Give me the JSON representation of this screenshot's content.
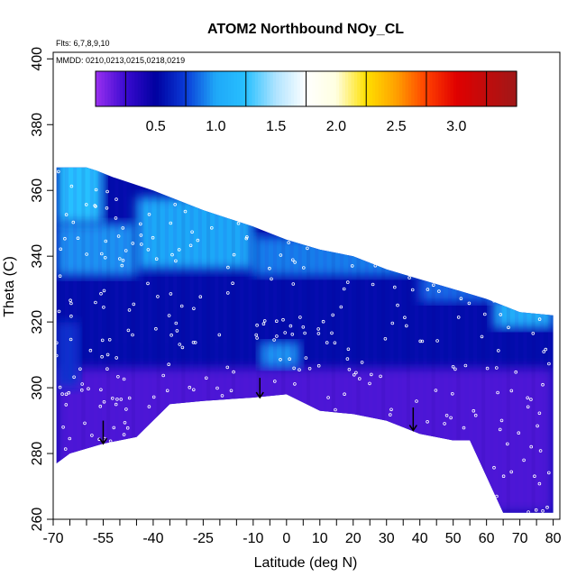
{
  "chart_data": {
    "type": "heatmap",
    "title": "ATOM2 Northbound NOy_CL",
    "annotations": {
      "flights": "Flts: 6,7,8,9,10",
      "dates": "MMDD: 0210,0213,0215,0218,0219"
    },
    "xlabel": "Latitude (deg N)",
    "ylabel": "Theta (C)",
    "xlim": [
      -70,
      82
    ],
    "ylim": [
      260,
      402
    ],
    "x_tick_labels": [
      {
        "value": -70,
        "label": "-70"
      },
      {
        "value": -55,
        "label": "-55"
      },
      {
        "value": -40,
        "label": "-40"
      },
      {
        "value": -25,
        "label": "-25"
      },
      {
        "value": -10,
        "label": "-10"
      },
      {
        "value": 0,
        "label": "0"
      },
      {
        "value": 10,
        "label": "10"
      },
      {
        "value": 20,
        "label": "20"
      },
      {
        "value": 30,
        "label": "30"
      },
      {
        "value": 40,
        "label": "40"
      },
      {
        "value": 50,
        "label": "50"
      },
      {
        "value": 60,
        "label": "60"
      },
      {
        "value": 70,
        "label": "70"
      },
      {
        "value": 80,
        "label": "80"
      }
    ],
    "x_minor_ticks": [
      -65,
      -60,
      -50,
      -45,
      -35,
      -30,
      -20,
      -15,
      -5,
      5,
      15,
      25,
      35,
      45,
      55,
      65,
      75
    ],
    "y_tick_labels": [
      {
        "value": 260,
        "label": "260"
      },
      {
        "value": 280,
        "label": "280"
      },
      {
        "value": 300,
        "label": "300"
      },
      {
        "value": 320,
        "label": "320"
      },
      {
        "value": 340,
        "label": "340"
      },
      {
        "value": 360,
        "label": "360"
      },
      {
        "value": 380,
        "label": "380"
      },
      {
        "value": 400,
        "label": "400"
      }
    ],
    "colorbar": {
      "range": [
        0,
        3.5
      ],
      "tick_labels": [
        {
          "value": 0.5,
          "label": "0.5"
        },
        {
          "value": 1.0,
          "label": "1.0"
        },
        {
          "value": 1.5,
          "label": "1.5"
        },
        {
          "value": 2.0,
          "label": "2.0"
        },
        {
          "value": 2.5,
          "label": "2.5"
        },
        {
          "value": 3.0,
          "label": "3.0"
        }
      ],
      "stops": [
        {
          "v": 0.0,
          "c": "#9a30f0"
        },
        {
          "v": 0.25,
          "c": "#3a0ad0"
        },
        {
          "v": 0.5,
          "c": "#0000a0"
        },
        {
          "v": 0.75,
          "c": "#0a3cd8"
        },
        {
          "v": 1.0,
          "c": "#1fa8f8"
        },
        {
          "v": 1.25,
          "c": "#28c0ff"
        },
        {
          "v": 1.5,
          "c": "#b0e4ff"
        },
        {
          "v": 1.75,
          "c": "#ffffff"
        },
        {
          "v": 2.0,
          "c": "#ffffe0"
        },
        {
          "v": 2.25,
          "c": "#ffe000"
        },
        {
          "v": 2.5,
          "c": "#ffa000"
        },
        {
          "v": 2.75,
          "c": "#ff4000"
        },
        {
          "v": 3.0,
          "c": "#e00000"
        },
        {
          "v": 3.5,
          "c": "#a01818"
        }
      ]
    },
    "upper_boundary_theta": [
      [
        -69,
        367
      ],
      [
        -60,
        367
      ],
      [
        -57,
        366
      ],
      [
        -52,
        364
      ],
      [
        -40,
        360
      ],
      [
        -25,
        354
      ],
      [
        -10,
        349
      ],
      [
        0,
        345
      ],
      [
        10,
        342
      ],
      [
        20,
        340
      ],
      [
        30,
        336
      ],
      [
        40,
        333
      ],
      [
        50,
        330
      ],
      [
        60,
        327
      ],
      [
        70,
        323
      ],
      [
        80,
        322
      ]
    ],
    "lower_boundary_theta": [
      [
        -69,
        277
      ],
      [
        -65,
        280
      ],
      [
        -55,
        283
      ],
      [
        -45,
        285
      ],
      [
        -35,
        295
      ],
      [
        -25,
        296
      ],
      [
        -10,
        297
      ],
      [
        0,
        298
      ],
      [
        10,
        293
      ],
      [
        20,
        292
      ],
      [
        30,
        290
      ],
      [
        40,
        286
      ],
      [
        50,
        284
      ],
      [
        55,
        284
      ],
      [
        65,
        262
      ],
      [
        80,
        262
      ]
    ],
    "field_segments": [
      {
        "lat": [
          -69,
          -55
        ],
        "theta": [
          350,
          372
        ],
        "value": 1.25
      },
      {
        "lat": [
          -69,
          -45
        ],
        "theta": [
          334,
          350
        ],
        "value": 0.95
      },
      {
        "lat": [
          -45,
          -10
        ],
        "theta": [
          336,
          358
        ],
        "value": 1.0
      },
      {
        "lat": [
          -10,
          40
        ],
        "theta": [
          334,
          346
        ],
        "value": 0.9
      },
      {
        "lat": [
          40,
          80
        ],
        "theta": [
          326,
          335
        ],
        "value": 0.85
      },
      {
        "lat": [
          62,
          80
        ],
        "theta": [
          318,
          328
        ],
        "value": 1.05
      },
      {
        "lat": [
          -69,
          -62
        ],
        "theta": [
          300,
          320
        ],
        "value": 0.7
      },
      {
        "lat": [
          -8,
          4
        ],
        "theta": [
          306,
          314
        ],
        "value": 0.95
      },
      {
        "lat": [
          -69,
          80
        ],
        "theta": [
          262,
          306
        ],
        "value": 0.2
      }
    ],
    "arrows": [
      {
        "lat": -55,
        "theta_from": 290,
        "theta_to": 283
      },
      {
        "lat": -8,
        "theta_from": 303,
        "theta_to": 297
      },
      {
        "lat": 38,
        "theta_from": 294,
        "theta_to": 287
      }
    ]
  }
}
